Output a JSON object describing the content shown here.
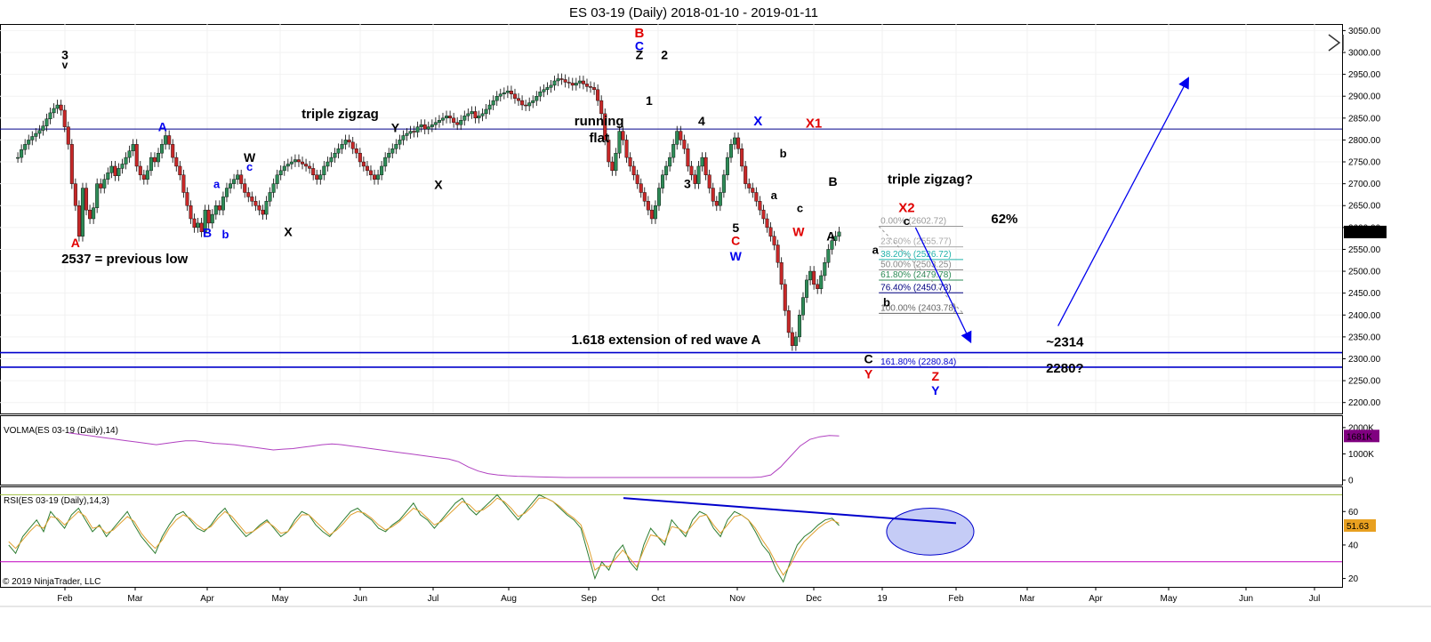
{
  "chart_data": {
    "type": "line",
    "title": "ES 03-19 (Daily)  2018-01-10 - 2019-01-11",
    "copyright": "© 2019 NinjaTrader, LLC",
    "x_tick_labels": [
      "Feb",
      "Mar",
      "Apr",
      "May",
      "Jun",
      "Jul",
      "Aug",
      "Sep",
      "Oct",
      "Nov",
      "Dec",
      "19",
      "Feb",
      "Mar",
      "Apr",
      "May",
      "Jun",
      "Jul"
    ],
    "price_panel": {
      "y_ticks": [
        3050,
        3000,
        2950,
        2900,
        2850,
        2800,
        2750,
        2700,
        2650,
        2600,
        2550,
        2500,
        2450,
        2400,
        2350,
        2300,
        2250,
        2200
      ],
      "y_tick_labels": [
        "3050.00",
        "3000.00",
        "2950.00",
        "2900.00",
        "2850.00",
        "2800.00",
        "2750.00",
        "2700.00",
        "2650.00",
        "2600.00",
        "2550.00",
        "2500.00",
        "2450.00",
        "2400.00",
        "2350.00",
        "2300.00",
        "2250.00",
        "2200.00"
      ],
      "ylim": [
        2175,
        3065
      ],
      "last_price": "2589.75",
      "series": [
        {
          "values": [
            2760,
            2778,
            2790,
            2800,
            2808,
            2815,
            2822,
            2832,
            2848,
            2862,
            2872,
            2880,
            2868,
            2830,
            2790,
            2700,
            2650,
            2580,
            2690,
            2640,
            2620,
            2645,
            2700,
            2690,
            2710,
            2725,
            2740,
            2718,
            2735,
            2745,
            2760,
            2775,
            2790,
            2740,
            2720,
            2710,
            2730,
            2760,
            2750,
            2770,
            2790,
            2810,
            2790,
            2760,
            2740,
            2720,
            2680,
            2650,
            2620,
            2600,
            2610,
            2590,
            2640,
            2610,
            2630,
            2650,
            2640,
            2670,
            2690,
            2700,
            2710,
            2720,
            2700,
            2680,
            2670,
            2660,
            2650,
            2640,
            2630,
            2660,
            2680,
            2700,
            2720,
            2730,
            2740,
            2745,
            2750,
            2755,
            2750,
            2745,
            2740,
            2735,
            2720,
            2710,
            2720,
            2740,
            2750,
            2760,
            2770,
            2780,
            2790,
            2800,
            2795,
            2780,
            2770,
            2750,
            2740,
            2730,
            2720,
            2710,
            2720,
            2740,
            2760,
            2770,
            2780,
            2790,
            2800,
            2810,
            2815,
            2820,
            2818,
            2830,
            2835,
            2825,
            2830,
            2835,
            2840,
            2845,
            2850,
            2855,
            2850,
            2840,
            2835,
            2845,
            2855,
            2860,
            2865,
            2850,
            2855,
            2860,
            2870,
            2880,
            2890,
            2900,
            2905,
            2908,
            2912,
            2905,
            2895,
            2890,
            2880,
            2878,
            2885,
            2890,
            2900,
            2910,
            2915,
            2920,
            2925,
            2935,
            2940,
            2938,
            2932,
            2930,
            2925,
            2930,
            2935,
            2928,
            2922,
            2920,
            2915,
            2890,
            2860,
            2800,
            2750,
            2730,
            2770,
            2820,
            2800,
            2760,
            2740,
            2720,
            2700,
            2680,
            2660,
            2640,
            2620,
            2650,
            2690,
            2720,
            2740,
            2760,
            2790,
            2820,
            2800,
            2780,
            2740,
            2720,
            2700,
            2740,
            2760,
            2720,
            2690,
            2660,
            2650,
            2680,
            2720,
            2760,
            2790,
            2805,
            2780,
            2740,
            2700,
            2690,
            2680,
            2660,
            2640,
            2620,
            2600,
            2580,
            2560,
            2520,
            2470,
            2410,
            2360,
            2330,
            2350,
            2400,
            2440,
            2480,
            2500,
            2470,
            2460,
            2490,
            2520,
            2550,
            2570,
            2580,
            2589.75
          ],
          "x_start_month": 1.33,
          "x_end_month": 12.37
        }
      ]
    },
    "volma_panel": {
      "label": "VOLMA(ES 03-19 (Daily),14)",
      "y_ticks": [
        2000000,
        1000000,
        0
      ],
      "y_tick_labels": [
        "2000K",
        "1000K",
        "0"
      ],
      "ylim": [
        0,
        2300000
      ],
      "last_value": "1681K",
      "series": [
        {
          "values": [
            1800000,
            1750000,
            1700000,
            1650000,
            1600000,
            1550000,
            1500000,
            1450000,
            1400000,
            1350000,
            1400000,
            1450000,
            1500000,
            1500000,
            1450000,
            1400000,
            1380000,
            1350000,
            1300000,
            1250000,
            1200000,
            1150000,
            1180000,
            1200000,
            1250000,
            1300000,
            1350000,
            1380000,
            1350000,
            1300000,
            1250000,
            1200000,
            1150000,
            1100000,
            1050000,
            1000000,
            950000,
            900000,
            850000,
            800000,
            700000,
            500000,
            350000,
            250000,
            200000,
            170000,
            150000,
            140000,
            130000,
            120000,
            110000,
            100000,
            100000,
            100000,
            100000,
            100000,
            100000,
            100000,
            100000,
            100000,
            100000,
            100000,
            100000,
            100000,
            100000,
            100000,
            100000,
            100000,
            100000,
            100000,
            100000,
            120000,
            200000,
            500000,
            900000,
            1300000,
            1550000,
            1650000,
            1700000,
            1681000
          ],
          "x_start_month": 2.05,
          "x_end_month": 12.37
        }
      ]
    },
    "rsi_panel": {
      "label": "RSI(ES 03-19 (Daily),14,3)",
      "y_ticks": [
        60,
        40,
        20
      ],
      "y_tick_labels": [
        "60",
        "40",
        "20"
      ],
      "ylim": [
        15,
        75
      ],
      "overbought": 70,
      "oversold": 30,
      "last_value": "51.63",
      "series": [
        {
          "values": [
            40,
            35,
            45,
            50,
            55,
            48,
            60,
            55,
            50,
            58,
            62,
            55,
            48,
            52,
            45,
            50,
            55,
            60,
            52,
            45,
            40,
            35,
            45,
            52,
            58,
            60,
            55,
            50,
            48,
            52,
            58,
            62,
            55,
            50,
            45,
            48,
            52,
            55,
            50,
            45,
            48,
            55,
            60,
            58,
            52,
            48,
            45,
            50,
            55,
            60,
            62,
            58,
            55,
            50,
            48,
            52,
            55,
            60,
            65,
            58,
            55,
            50,
            55,
            60,
            65,
            68,
            62,
            58,
            62,
            66,
            70,
            65,
            60,
            55,
            60,
            65,
            70,
            68,
            66,
            62,
            58,
            55,
            50,
            35,
            20,
            30,
            25,
            35,
            40,
            30,
            25,
            40,
            50,
            45,
            40,
            55,
            50,
            45,
            55,
            60,
            58,
            50,
            45,
            55,
            60,
            58,
            55,
            48,
            40,
            35,
            25,
            18,
            30,
            40,
            45,
            48,
            52,
            55,
            56,
            51.63
          ],
          "x_start_month": 1.2,
          "x_end_month": 12.37
        },
        {
          "values": [
            42,
            38,
            43,
            48,
            52,
            50,
            57,
            56,
            52,
            56,
            60,
            57,
            50,
            51,
            47,
            49,
            53,
            57,
            54,
            47,
            42,
            38,
            43,
            50,
            55,
            58,
            56,
            52,
            49,
            51,
            56,
            60,
            57,
            52,
            47,
            48,
            51,
            54,
            51,
            47,
            48,
            53,
            58,
            58,
            54,
            50,
            46,
            49,
            53,
            58,
            60,
            59,
            56,
            52,
            49,
            51,
            54,
            58,
            62,
            60,
            56,
            52,
            54,
            58,
            62,
            66,
            64,
            60,
            61,
            64,
            68,
            66,
            62,
            57,
            59,
            63,
            68,
            68,
            66,
            63,
            59,
            56,
            52,
            40,
            25,
            28,
            27,
            32,
            37,
            32,
            27,
            37,
            46,
            45,
            42,
            51,
            50,
            47,
            52,
            57,
            58,
            52,
            47,
            52,
            57,
            58,
            55,
            50,
            43,
            37,
            29,
            22,
            28,
            36,
            42,
            46,
            50,
            53,
            55,
            53
          ],
          "x_start_month": 1.2,
          "x_end_month": 12.37
        }
      ]
    },
    "horizontal_lines": [
      {
        "value": 2825,
        "color": "#00008b"
      },
      {
        "value": 2314,
        "color": "#0000cc"
      },
      {
        "value": 2280.84,
        "color": "#0000cc"
      }
    ],
    "fib_levels": [
      {
        "label": "0.00% (2602.72)",
        "value": 2602.72,
        "color": "#999999"
      },
      {
        "label": "23.60% (2555.77)",
        "value": 2555.77,
        "color": "#aaaaaa"
      },
      {
        "label": "38.20% (2526.72)",
        "value": 2526.72,
        "color": "#20b2aa"
      },
      {
        "label": "50.00% (2503.25)",
        "value": 2503.25,
        "color": "#888888"
      },
      {
        "label": "61.80% (2479.78)",
        "value": 2479.78,
        "color": "#2e8b57"
      },
      {
        "label": "76.40% (2450.73)",
        "value": 2450.73,
        "color": "#000080"
      },
      {
        "label": "100.00% (2403.78)",
        "value": 2403.78,
        "color": "#666666"
      },
      {
        "label": "161.80% (2280.84)",
        "value": 2280.84,
        "color": "#0000cc"
      }
    ],
    "annotations": [
      {
        "text": "3",
        "x": 1.0,
        "y": 2985,
        "color": "#000",
        "size": 14
      },
      {
        "text": "v",
        "x": 1.0,
        "y": 2963,
        "color": "#000",
        "size": 12
      },
      {
        "text": "A",
        "x": 1.15,
        "y": 2555,
        "color": "#e00000",
        "size": 14
      },
      {
        "text": "2537 = previous low",
        "x": 1.85,
        "y": 2518,
        "color": "#000",
        "size": 15
      },
      {
        "text": "A",
        "x": 2.38,
        "y": 2820,
        "color": "#0000ee",
        "size": 14
      },
      {
        "text": "B",
        "x": 3.0,
        "y": 2578,
        "color": "#0000ee",
        "size": 14
      },
      {
        "text": "a",
        "x": 3.13,
        "y": 2690,
        "color": "#0000ee",
        "size": 13
      },
      {
        "text": "b",
        "x": 3.25,
        "y": 2575,
        "color": "#0000ee",
        "size": 13
      },
      {
        "text": "W",
        "x": 3.58,
        "y": 2750,
        "color": "#000",
        "size": 14
      },
      {
        "text": "c",
        "x": 3.58,
        "y": 2730,
        "color": "#0000ee",
        "size": 13
      },
      {
        "text": "X",
        "x": 4.1,
        "y": 2580,
        "color": "#000",
        "size": 14
      },
      {
        "text": "triple zigzag",
        "x": 4.75,
        "y": 2850,
        "color": "#000",
        "size": 15
      },
      {
        "text": "Y",
        "x": 5.48,
        "y": 2818,
        "color": "#000",
        "size": 14
      },
      {
        "text": "X",
        "x": 6.07,
        "y": 2688,
        "color": "#000",
        "size": 14
      },
      {
        "text": "running",
        "x": 8.15,
        "y": 2833,
        "color": "#000",
        "size": 15
      },
      {
        "text": "flat",
        "x": 8.15,
        "y": 2795,
        "color": "#000",
        "size": 15
      },
      {
        "text": "B",
        "x": 8.73,
        "y": 3035,
        "color": "#e00000",
        "size": 15
      },
      {
        "text": "C",
        "x": 8.73,
        "y": 3005,
        "color": "#0000ee",
        "size": 14
      },
      {
        "text": "Z",
        "x": 8.73,
        "y": 2985,
        "color": "#000",
        "size": 14
      },
      {
        "text": "2",
        "x": 9.08,
        "y": 2985,
        "color": "#000",
        "size": 14
      },
      {
        "text": "1",
        "x": 8.87,
        "y": 2880,
        "color": "#000",
        "size": 14
      },
      {
        "text": "4",
        "x": 9.55,
        "y": 2833,
        "color": "#000",
        "size": 14
      },
      {
        "text": "3",
        "x": 9.37,
        "y": 2690,
        "color": "#000",
        "size": 14
      },
      {
        "text": "X",
        "x": 10.27,
        "y": 2833,
        "color": "#0000ee",
        "size": 15
      },
      {
        "text": "b",
        "x": 10.6,
        "y": 2760,
        "color": "#000",
        "size": 13
      },
      {
        "text": "a",
        "x": 10.48,
        "y": 2665,
        "color": "#000",
        "size": 13
      },
      {
        "text": "c",
        "x": 10.82,
        "y": 2635,
        "color": "#000",
        "size": 13
      },
      {
        "text": "W",
        "x": 10.8,
        "y": 2580,
        "color": "#e00000",
        "size": 14
      },
      {
        "text": "5",
        "x": 9.98,
        "y": 2590,
        "color": "#000",
        "size": 14
      },
      {
        "text": "C",
        "x": 9.98,
        "y": 2560,
        "color": "#e00000",
        "size": 14
      },
      {
        "text": "W",
        "x": 9.98,
        "y": 2525,
        "color": "#0000ee",
        "size": 14
      },
      {
        "text": "X1",
        "x": 11.0,
        "y": 2828,
        "color": "#e00000",
        "size": 15
      },
      {
        "text": "B",
        "x": 11.28,
        "y": 2695,
        "color": "#000",
        "size": 14
      },
      {
        "text": "A",
        "x": 11.25,
        "y": 2570,
        "color": "#000",
        "size": 14
      },
      {
        "text": "triple zigzag?",
        "x": 12.65,
        "y": 2700,
        "color": "#000",
        "size": 15
      },
      {
        "text": "X2",
        "x": 12.33,
        "y": 2635,
        "color": "#e00000",
        "size": 15
      },
      {
        "text": "c",
        "x": 12.33,
        "y": 2606,
        "color": "#000",
        "size": 13
      },
      {
        "text": "62%",
        "x": 13.68,
        "y": 2610,
        "color": "#000",
        "size": 15
      },
      {
        "text": "a",
        "x": 11.9,
        "y": 2540,
        "color": "#000",
        "size": 13
      },
      {
        "text": "b",
        "x": 12.06,
        "y": 2420,
        "color": "#000",
        "size": 13
      },
      {
        "text": "1.618 extension of red wave A",
        "x": 9.1,
        "y": 2333,
        "color": "#000",
        "size": 15
      },
      {
        "text": "C",
        "x": 11.8,
        "y": 2290,
        "color": "#000",
        "size": 14
      },
      {
        "text": "Y",
        "x": 11.8,
        "y": 2255,
        "color": "#e00000",
        "size": 14
      },
      {
        "text": "Z",
        "x": 12.72,
        "y": 2250,
        "color": "#e00000",
        "size": 14
      },
      {
        "text": "Y",
        "x": 12.72,
        "y": 2218,
        "color": "#0000ee",
        "size": 14
      },
      {
        "text": "~2314",
        "x": 14.55,
        "y": 2328,
        "color": "#000",
        "size": 15
      },
      {
        "text": "2280?",
        "x": 14.55,
        "y": 2268,
        "color": "#000",
        "size": 15
      }
    ],
    "arrows": [
      {
        "from": [
          12.45,
          2600
        ],
        "to": [
          13.2,
          2340
        ],
        "color": "#0000ee"
      },
      {
        "from": [
          14.45,
          2375
        ],
        "to": [
          16.25,
          2940
        ],
        "color": "#0000ee"
      }
    ],
    "rsi_trendline": {
      "from": [
        8.5,
        68
      ],
      "to": [
        13.0,
        53
      ],
      "color": "#0000cc"
    },
    "rsi_ellipse": {
      "cx": 12.65,
      "cy": 48,
      "rx": 0.6,
      "ry": 14
    }
  }
}
